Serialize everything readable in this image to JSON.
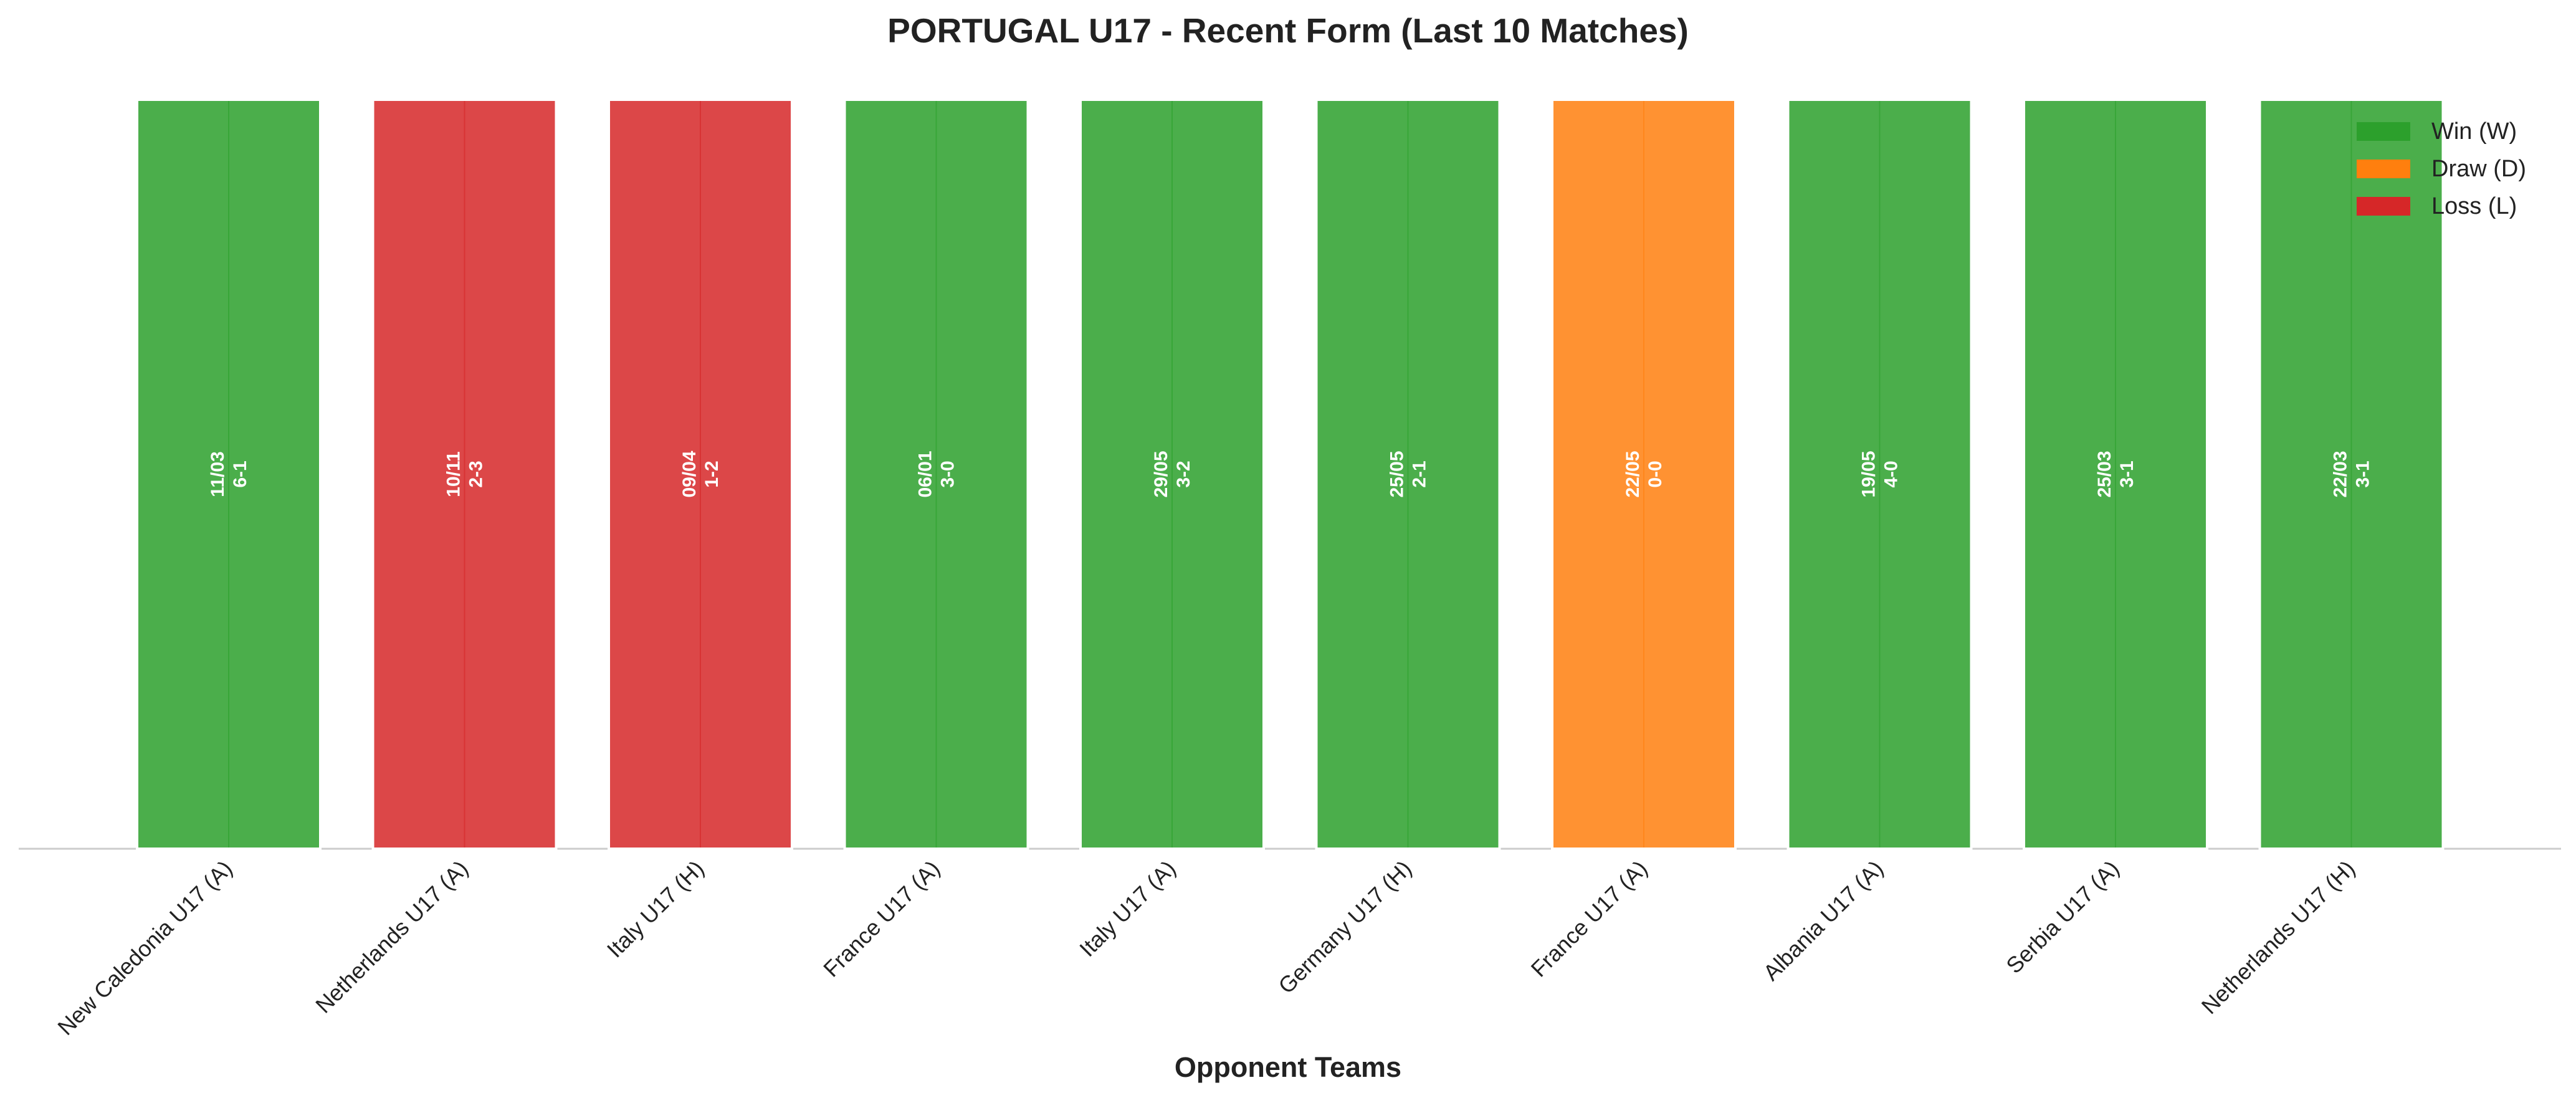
{
  "chart_data": {
    "type": "bar",
    "title": "PORTUGAL U17 - Recent Form (Last 10 Matches)",
    "xlabel": "Opponent Teams",
    "ylabel": "",
    "grid": false,
    "legend_position": "top-right",
    "legend": [
      {
        "key": "W",
        "label": "Win (W)",
        "color": "#2ca02c"
      },
      {
        "key": "D",
        "label": "Draw (D)",
        "color": "#ff7f0e"
      },
      {
        "key": "L",
        "label": "Loss (L)",
        "color": "#d62728"
      }
    ],
    "categories": [
      "New Caledonia U17 (A)",
      "Netherlands U17 (A)",
      "Italy U17 (H)",
      "France U17 (A)",
      "Italy U17 (A)",
      "Germany U17 (H)",
      "France U17 (A)",
      "Albania U17 (A)",
      "Serbia U17 (A)",
      "Netherlands U17 (H)"
    ],
    "values": [
      1,
      1,
      1,
      1,
      1,
      1,
      1,
      1,
      1,
      1
    ],
    "ylim": [
      0,
      1
    ],
    "results": [
      "W",
      "L",
      "L",
      "W",
      "W",
      "W",
      "D",
      "W",
      "W",
      "W"
    ],
    "dates": [
      "11/03",
      "10/11",
      "09/04",
      "06/01",
      "29/05",
      "25/05",
      "22/05",
      "19/05",
      "25/03",
      "22/03"
    ],
    "scores": [
      "6-1",
      "2-3",
      "1-2",
      "3-0",
      "3-2",
      "2-1",
      "0-0",
      "4-0",
      "3-1",
      "3-1"
    ]
  }
}
